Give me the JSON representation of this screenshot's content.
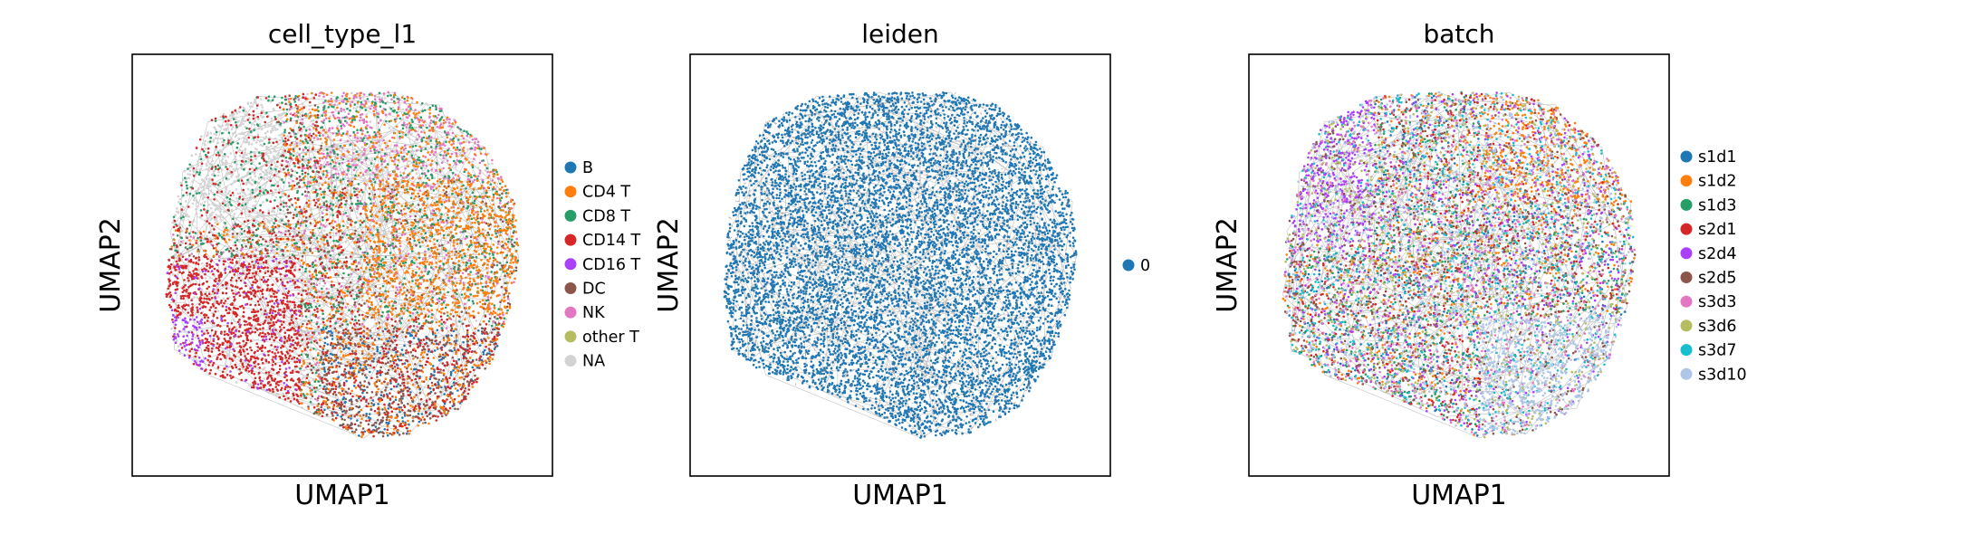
{
  "figure": {
    "description_source": "scanpy-style UMAP embedding panels"
  },
  "chart_data": [
    {
      "type": "scatter",
      "title": "cell_type_l1",
      "xlabel": "UMAP1",
      "ylabel": "UMAP2",
      "grid": false,
      "legend_placement": "right",
      "series": [
        {
          "name": "B",
          "color": "#1f77b4"
        },
        {
          "name": "CD4 T",
          "color": "#ff7f0e"
        },
        {
          "name": "CD8 T",
          "color": "#279e68"
        },
        {
          "name": "CD14 T",
          "color": "#d62728"
        },
        {
          "name": "CD16 T",
          "color": "#aa40fc"
        },
        {
          "name": "DC",
          "color": "#8c564b"
        },
        {
          "name": "NK",
          "color": "#e377c2"
        },
        {
          "name": "other T",
          "color": "#b5bd61"
        },
        {
          "name": "NA",
          "color": "#d3d3d3"
        }
      ]
    },
    {
      "type": "scatter",
      "title": "leiden",
      "xlabel": "UMAP1",
      "ylabel": "UMAP2",
      "grid": false,
      "legend_placement": "right",
      "series": [
        {
          "name": "0",
          "color": "#1f77b4"
        }
      ]
    },
    {
      "type": "scatter",
      "title": "batch",
      "xlabel": "UMAP1",
      "ylabel": "UMAP2",
      "grid": false,
      "legend_placement": "right",
      "series": [
        {
          "name": "s1d1",
          "color": "#1f77b4"
        },
        {
          "name": "s1d2",
          "color": "#ff7f0e"
        },
        {
          "name": "s1d3",
          "color": "#279e68"
        },
        {
          "name": "s2d1",
          "color": "#d62728"
        },
        {
          "name": "s2d4",
          "color": "#aa40fc"
        },
        {
          "name": "s2d5",
          "color": "#8c564b"
        },
        {
          "name": "s3d3",
          "color": "#e377c2"
        },
        {
          "name": "s3d6",
          "color": "#b5bd61"
        },
        {
          "name": "s3d7",
          "color": "#17becf"
        },
        {
          "name": "s3d10",
          "color": "#aec7e8"
        }
      ]
    }
  ],
  "colors": {
    "edges": "#8c8c8c",
    "frame": "#000000"
  }
}
